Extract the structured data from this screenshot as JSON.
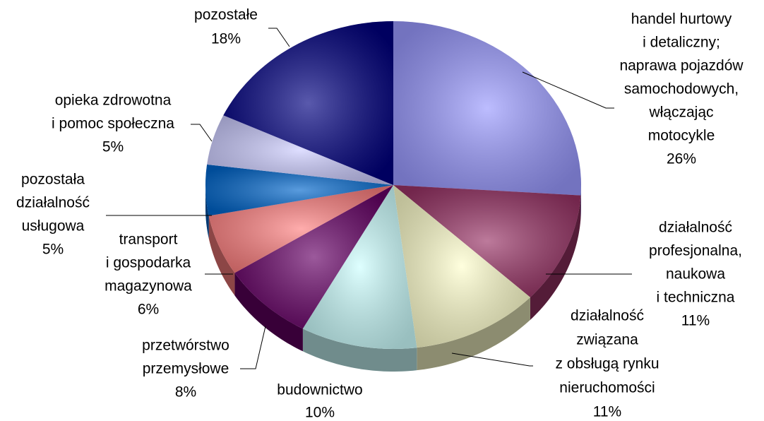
{
  "chart_data": {
    "type": "pie",
    "categories": [
      [
        "handel hurtowy",
        "i detaliczny;",
        "naprawa pojazdów",
        "samochodowych,",
        "włączając",
        "motocykle"
      ],
      [
        "działalność",
        "profesjonalna,",
        "naukowa",
        "i techniczna"
      ],
      [
        "działalność",
        "związana",
        "z obsługą rynku",
        "nieruchomości"
      ],
      [
        "budownictwo"
      ],
      [
        "przetwórstwo",
        "przemysłowe"
      ],
      [
        "transport",
        "i gospodarka",
        "magazynowa"
      ],
      [
        "pozostała",
        "działalność",
        "usługowa"
      ],
      [
        "opieka zdrowotna",
        "i pomoc społeczna"
      ],
      [
        "pozostałe"
      ]
    ],
    "values": [
      26,
      11,
      11,
      10,
      8,
      6,
      5,
      5,
      18
    ],
    "value_labels": [
      "26%",
      "11%",
      "11%",
      "10%",
      "8%",
      "6%",
      "5%",
      "5%",
      "18%"
    ],
    "colors": [
      "#9999ff",
      "#993366",
      "#ffffcc",
      "#ccffff",
      "#660066",
      "#ff8080",
      "#0066cc",
      "#ccccff",
      "#000080"
    ]
  }
}
